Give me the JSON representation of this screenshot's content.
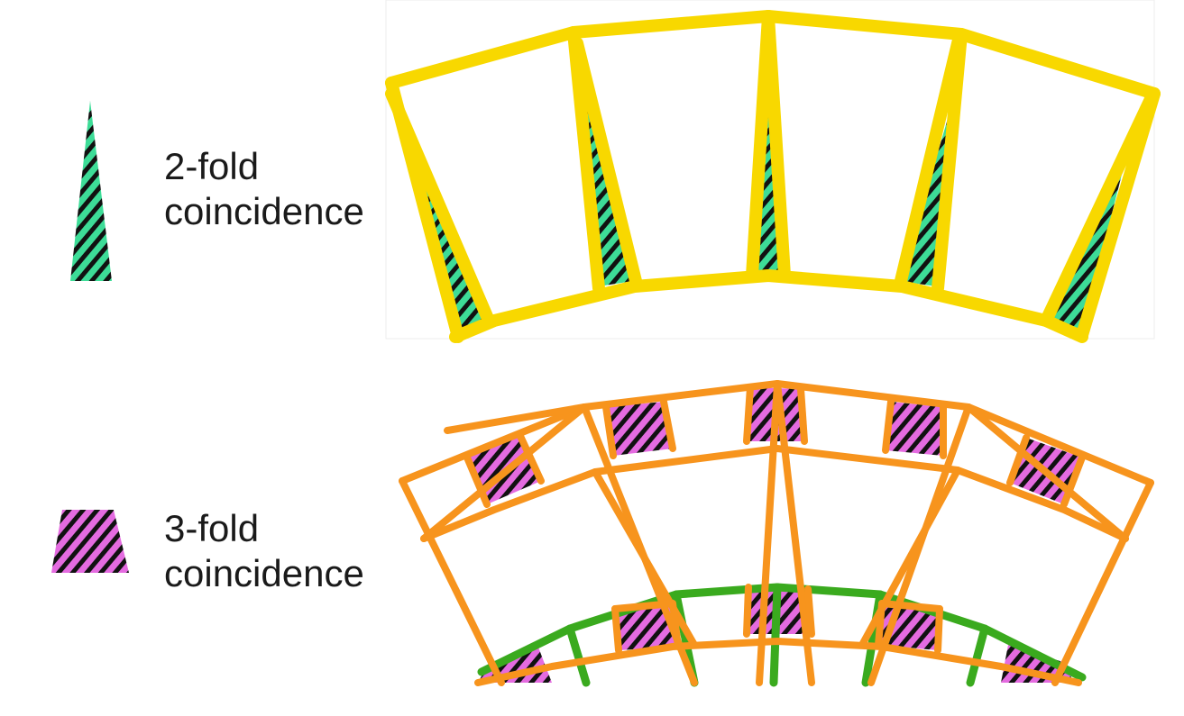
{
  "legend": [
    {
      "key": "two_fold",
      "line1": "2-fold",
      "line2": "coincidence",
      "fill": "#3ddc97",
      "hatch": "#111111"
    },
    {
      "key": "three_fold",
      "line1": "3-fold",
      "line2": "coincidence",
      "fill": "#e46be0",
      "hatch": "#111111"
    }
  ],
  "colors": {
    "top_frame": "#f8d800",
    "bottom_frame_outer": "#f7941d",
    "bottom_frame_inner": "#3aaa1e",
    "overlap_two_fold": "#3ddc97",
    "overlap_three_fold": "#e46be0"
  }
}
